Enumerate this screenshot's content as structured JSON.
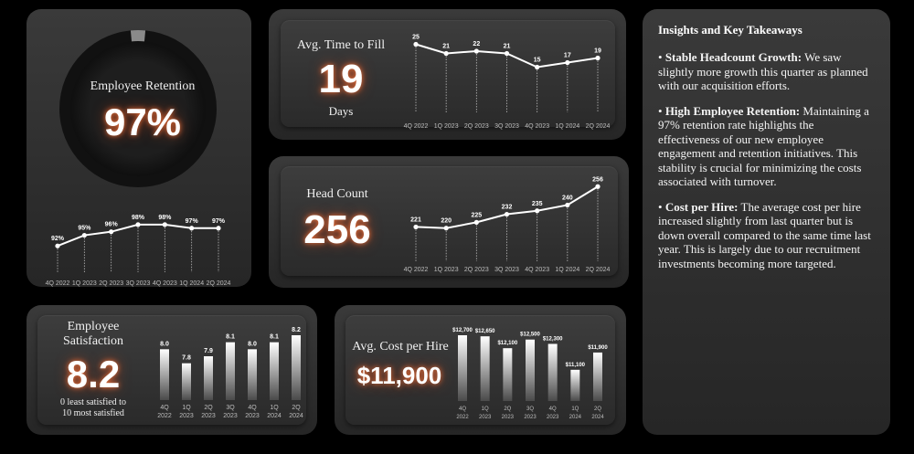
{
  "retention": {
    "title": "Employee Retention",
    "value": "97%",
    "gauge_fraction": 0.97
  },
  "time_to_fill": {
    "title": "Avg. Time to Fill",
    "value": "19",
    "unit": "Days"
  },
  "head_count": {
    "title": "Head Count",
    "value": "256"
  },
  "satisfaction": {
    "title_line1": "Employee",
    "title_line2": "Satisfaction",
    "value": "8.2",
    "note_line1": "0 least satisfied to",
    "note_line2": "10 most satisfied"
  },
  "cost_per_hire": {
    "title": "Avg. Cost per Hire",
    "value": "$11,900"
  },
  "insights": {
    "title": "Insights and Key Takeaways",
    "items": [
      {
        "bullet": "• ",
        "head": "Stable Headcount Growth:",
        "body": " We saw slightly more growth this quarter as planned with our acquisition efforts."
      },
      {
        "bullet": "• ",
        "head": "High Employee Retention:",
        "body": " Maintaining a 97% retention rate highlights the effectiveness of our new employee engagement and retention initiatives. This stability is crucial for minimizing the costs associated with turnover."
      },
      {
        "bullet": "• ",
        "head": "Cost per Hire:",
        "body": " The average cost per hire increased slightly from last quarter but is down overall compared to the same time last year. This is largely due to our recruitment investments becoming more targeted."
      }
    ]
  },
  "chart_data": [
    {
      "id": "retention",
      "type": "line",
      "categories": [
        "4Q 2022",
        "1Q 2023",
        "2Q 2023",
        "3Q 2023",
        "4Q 2023",
        "1Q 2024",
        "2Q 2024"
      ],
      "values": [
        92,
        95,
        96,
        98,
        98,
        97,
        97
      ],
      "labels": [
        "92%",
        "95%",
        "96%",
        "98%",
        "98%",
        "97%",
        "97%"
      ],
      "ylim": [
        90,
        99
      ]
    },
    {
      "id": "time_to_fill",
      "type": "line",
      "categories": [
        "4Q 2022",
        "1Q 2023",
        "2Q 2023",
        "3Q 2023",
        "4Q 2023",
        "1Q 2024",
        "2Q 2024"
      ],
      "values": [
        25,
        21,
        22,
        21,
        15,
        17,
        19
      ],
      "labels": [
        "25",
        "21",
        "22",
        "21",
        "15",
        "17",
        "19"
      ],
      "ylim": [
        10,
        26
      ]
    },
    {
      "id": "head_count",
      "type": "line",
      "categories": [
        "4Q 2022",
        "1Q 2023",
        "2Q 2023",
        "3Q 2023",
        "4Q 2023",
        "1Q 2024",
        "2Q 2024"
      ],
      "values": [
        221,
        220,
        225,
        232,
        235,
        240,
        256
      ],
      "labels": [
        "221",
        "220",
        "225",
        "232",
        "235",
        "240",
        "256"
      ],
      "ylim": [
        215,
        257
      ]
    },
    {
      "id": "satisfaction",
      "type": "bar",
      "categories": [
        "4Q|2022",
        "1Q|2023",
        "2Q|2023",
        "3Q|2023",
        "4Q|2023",
        "1Q|2024",
        "2Q|2024"
      ],
      "values": [
        8.0,
        7.8,
        7.9,
        8.1,
        8.0,
        8.1,
        8.2
      ],
      "labels": [
        "8.0",
        "7.8",
        "7.9",
        "8.1",
        "8.0",
        "8.1",
        "8.2"
      ],
      "ylim": [
        7.6,
        8.2
      ]
    },
    {
      "id": "cost_per_hire",
      "type": "bar",
      "categories": [
        "4Q|2022",
        "1Q|2023",
        "2Q|2023",
        "3Q|2023",
        "4Q|2023",
        "1Q|2024",
        "2Q|2024"
      ],
      "values": [
        12700,
        12650,
        12100,
        12500,
        12300,
        11100,
        11900
      ],
      "labels": [
        "$12,700",
        "$12,650",
        "$12,100",
        "$12,500",
        "$12,300",
        "$11,100",
        "$11,900"
      ],
      "ylim": [
        10500,
        12700
      ]
    }
  ]
}
